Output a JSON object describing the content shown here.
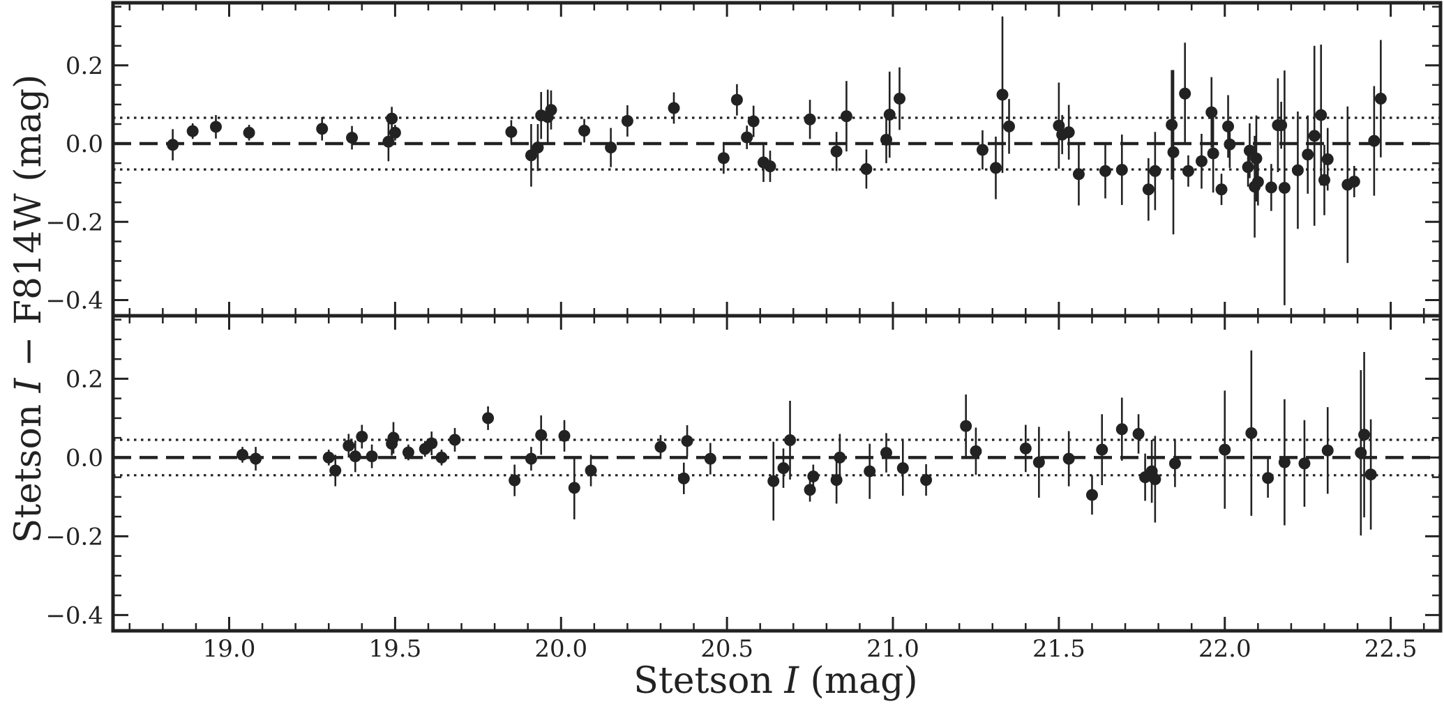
{
  "chart_data": {
    "type": "scatter",
    "xlabel": "Stetson I (mag)",
    "ylabel": "Stetson I − F814W (mag)",
    "xlim": [
      18.65,
      22.65
    ],
    "xticks": [
      19.0,
      19.5,
      20.0,
      20.5,
      21.0,
      21.5,
      22.0,
      22.5
    ],
    "xtick_labels": [
      "19.0",
      "19.5",
      "20.0",
      "20.5",
      "21.0",
      "21.5",
      "22.0",
      "22.5"
    ],
    "shared_x": true,
    "panels": [
      {
        "name": "top",
        "ylim": [
          -0.44,
          0.36
        ],
        "yticks": [
          0.2,
          0.0,
          -0.2,
          -0.4
        ],
        "ytick_labels": [
          "0.2",
          "0.0",
          "−0.2",
          "−0.4"
        ],
        "reference_lines": [
          {
            "style": "dashed",
            "y": 0.0
          },
          {
            "style": "dotted",
            "y": 0.066
          },
          {
            "style": "dotted",
            "y": -0.066
          }
        ],
        "points": [
          {
            "x": 18.83,
            "y": -0.003,
            "err": 0.04
          },
          {
            "x": 18.89,
            "y": 0.032,
            "err": 0.02
          },
          {
            "x": 18.96,
            "y": 0.043,
            "err": 0.03
          },
          {
            "x": 19.06,
            "y": 0.028,
            "err": 0.02
          },
          {
            "x": 19.28,
            "y": 0.038,
            "err": 0.03
          },
          {
            "x": 19.37,
            "y": 0.015,
            "err": 0.03
          },
          {
            "x": 19.48,
            "y": 0.005,
            "err": 0.05
          },
          {
            "x": 19.49,
            "y": 0.064,
            "err": 0.03
          },
          {
            "x": 19.5,
            "y": 0.028,
            "err": 0.02
          },
          {
            "x": 19.85,
            "y": 0.03,
            "err": 0.03
          },
          {
            "x": 19.91,
            "y": -0.03,
            "err": 0.08
          },
          {
            "x": 19.93,
            "y": -0.01,
            "err": 0.06
          },
          {
            "x": 19.94,
            "y": 0.072,
            "err": 0.06
          },
          {
            "x": 19.96,
            "y": 0.068,
            "err": 0.07
          },
          {
            "x": 19.97,
            "y": 0.086,
            "err": 0.05
          },
          {
            "x": 20.07,
            "y": 0.033,
            "err": 0.03
          },
          {
            "x": 20.15,
            "y": -0.01,
            "err": 0.05
          },
          {
            "x": 20.2,
            "y": 0.058,
            "err": 0.04
          },
          {
            "x": 20.34,
            "y": 0.091,
            "err": 0.04
          },
          {
            "x": 20.49,
            "y": -0.037,
            "err": 0.04
          },
          {
            "x": 20.53,
            "y": 0.112,
            "err": 0.04
          },
          {
            "x": 20.56,
            "y": 0.016,
            "err": 0.03
          },
          {
            "x": 20.58,
            "y": 0.057,
            "err": 0.04
          },
          {
            "x": 20.61,
            "y": -0.048,
            "err": 0.05
          },
          {
            "x": 20.63,
            "y": -0.058,
            "err": 0.04
          },
          {
            "x": 20.75,
            "y": 0.062,
            "err": 0.05
          },
          {
            "x": 20.83,
            "y": -0.02,
            "err": 0.05
          },
          {
            "x": 20.86,
            "y": 0.07,
            "err": 0.09
          },
          {
            "x": 20.92,
            "y": -0.065,
            "err": 0.05
          },
          {
            "x": 20.98,
            "y": 0.01,
            "err": 0.06
          },
          {
            "x": 20.99,
            "y": 0.074,
            "err": 0.11
          },
          {
            "x": 21.02,
            "y": 0.115,
            "err": 0.08
          },
          {
            "x": 21.27,
            "y": -0.016,
            "err": 0.05
          },
          {
            "x": 21.31,
            "y": -0.062,
            "err": 0.08
          },
          {
            "x": 21.33,
            "y": 0.125,
            "err": 0.2
          },
          {
            "x": 21.35,
            "y": 0.044,
            "err": 0.07
          },
          {
            "x": 21.5,
            "y": 0.046,
            "err": 0.11
          },
          {
            "x": 21.51,
            "y": 0.023,
            "err": 0.05
          },
          {
            "x": 21.53,
            "y": 0.029,
            "err": 0.07
          },
          {
            "x": 21.56,
            "y": -0.078,
            "err": 0.08
          },
          {
            "x": 21.64,
            "y": -0.07,
            "err": 0.07
          },
          {
            "x": 21.69,
            "y": -0.067,
            "err": 0.09
          },
          {
            "x": 21.77,
            "y": -0.117,
            "err": 0.08
          },
          {
            "x": 21.79,
            "y": -0.07,
            "err": 0.1
          },
          {
            "x": 21.84,
            "y": 0.048,
            "err": 0.14
          },
          {
            "x": 21.845,
            "y": -0.022,
            "err": 0.21
          },
          {
            "x": 21.88,
            "y": 0.128,
            "err": 0.13
          },
          {
            "x": 21.89,
            "y": -0.07,
            "err": 0.04
          },
          {
            "x": 21.93,
            "y": -0.045,
            "err": 0.07
          },
          {
            "x": 21.96,
            "y": 0.08,
            "err": 0.09
          },
          {
            "x": 21.965,
            "y": -0.025,
            "err": 0.1
          },
          {
            "x": 21.99,
            "y": -0.117,
            "err": 0.04
          },
          {
            "x": 22.01,
            "y": 0.044,
            "err": 0.08
          },
          {
            "x": 22.015,
            "y": -0.002,
            "err": 0.06
          },
          {
            "x": 22.07,
            "y": -0.06,
            "err": 0.05
          },
          {
            "x": 22.075,
            "y": -0.018,
            "err": 0.07
          },
          {
            "x": 22.09,
            "y": -0.11,
            "err": 0.13
          },
          {
            "x": 22.095,
            "y": -0.038,
            "err": 0.11
          },
          {
            "x": 22.1,
            "y": -0.098,
            "err": 0.06
          },
          {
            "x": 22.14,
            "y": -0.112,
            "err": 0.06
          },
          {
            "x": 22.16,
            "y": 0.047,
            "err": 0.12
          },
          {
            "x": 22.17,
            "y": 0.047,
            "err": 0.06
          },
          {
            "x": 22.18,
            "y": -0.113,
            "err": 0.3
          },
          {
            "x": 22.22,
            "y": -0.068,
            "err": 0.15
          },
          {
            "x": 22.25,
            "y": -0.028,
            "err": 0.1
          },
          {
            "x": 22.27,
            "y": 0.02,
            "err": 0.23
          },
          {
            "x": 22.29,
            "y": 0.073,
            "err": 0.18
          },
          {
            "x": 22.3,
            "y": -0.093,
            "err": 0.09
          },
          {
            "x": 22.31,
            "y": -0.04,
            "err": 0.08
          },
          {
            "x": 22.37,
            "y": -0.105,
            "err": 0.2
          },
          {
            "x": 22.39,
            "y": -0.097,
            "err": 0.04
          },
          {
            "x": 22.45,
            "y": 0.007,
            "err": 0.14
          },
          {
            "x": 22.47,
            "y": 0.115,
            "err": 0.15
          }
        ]
      },
      {
        "name": "bottom",
        "ylim": [
          -0.44,
          0.36
        ],
        "yticks": [
          0.2,
          0.0,
          -0.2,
          -0.4
        ],
        "ytick_labels": [
          "0.2",
          "0.0",
          "−0.2",
          "−0.4"
        ],
        "reference_lines": [
          {
            "style": "dashed",
            "y": 0.0
          },
          {
            "style": "dotted",
            "y": 0.045
          },
          {
            "style": "dotted",
            "y": -0.045
          }
        ],
        "points": [
          {
            "x": 19.04,
            "y": 0.007,
            "err": 0.02
          },
          {
            "x": 19.08,
            "y": -0.003,
            "err": 0.03
          },
          {
            "x": 19.3,
            "y": 0.0,
            "err": 0.02
          },
          {
            "x": 19.32,
            "y": -0.033,
            "err": 0.04
          },
          {
            "x": 19.36,
            "y": 0.03,
            "err": 0.03
          },
          {
            "x": 19.38,
            "y": 0.003,
            "err": 0.04
          },
          {
            "x": 19.4,
            "y": 0.053,
            "err": 0.03
          },
          {
            "x": 19.43,
            "y": 0.003,
            "err": 0.03
          },
          {
            "x": 19.49,
            "y": 0.035,
            "err": 0.03
          },
          {
            "x": 19.495,
            "y": 0.05,
            "err": 0.04
          },
          {
            "x": 19.54,
            "y": 0.013,
            "err": 0.02
          },
          {
            "x": 19.59,
            "y": 0.022,
            "err": 0.02
          },
          {
            "x": 19.61,
            "y": 0.036,
            "err": 0.03
          },
          {
            "x": 19.64,
            "y": 0.0,
            "err": 0.02
          },
          {
            "x": 19.68,
            "y": 0.045,
            "err": 0.03
          },
          {
            "x": 19.78,
            "y": 0.1,
            "err": 0.03
          },
          {
            "x": 19.86,
            "y": -0.058,
            "err": 0.04
          },
          {
            "x": 19.91,
            "y": -0.003,
            "err": 0.03
          },
          {
            "x": 19.94,
            "y": 0.057,
            "err": 0.05
          },
          {
            "x": 20.01,
            "y": 0.055,
            "err": 0.04
          },
          {
            "x": 20.04,
            "y": -0.077,
            "err": 0.08
          },
          {
            "x": 20.09,
            "y": -0.033,
            "err": 0.04
          },
          {
            "x": 20.3,
            "y": 0.027,
            "err": 0.03
          },
          {
            "x": 20.37,
            "y": -0.053,
            "err": 0.04
          },
          {
            "x": 20.38,
            "y": 0.042,
            "err": 0.04
          },
          {
            "x": 20.45,
            "y": -0.003,
            "err": 0.04
          },
          {
            "x": 20.64,
            "y": -0.06,
            "err": 0.1
          },
          {
            "x": 20.67,
            "y": -0.027,
            "err": 0.05
          },
          {
            "x": 20.69,
            "y": 0.044,
            "err": 0.1
          },
          {
            "x": 20.75,
            "y": -0.082,
            "err": 0.03
          },
          {
            "x": 20.76,
            "y": -0.048,
            "err": 0.03
          },
          {
            "x": 20.83,
            "y": -0.057,
            "err": 0.06
          },
          {
            "x": 20.84,
            "y": 0.0,
            "err": 0.06
          },
          {
            "x": 20.93,
            "y": -0.035,
            "err": 0.07
          },
          {
            "x": 20.98,
            "y": 0.012,
            "err": 0.05
          },
          {
            "x": 21.03,
            "y": -0.027,
            "err": 0.07
          },
          {
            "x": 21.1,
            "y": -0.057,
            "err": 0.04
          },
          {
            "x": 21.22,
            "y": 0.08,
            "err": 0.08
          },
          {
            "x": 21.25,
            "y": 0.016,
            "err": 0.06
          },
          {
            "x": 21.4,
            "y": 0.023,
            "err": 0.06
          },
          {
            "x": 21.44,
            "y": -0.012,
            "err": 0.09
          },
          {
            "x": 21.53,
            "y": -0.003,
            "err": 0.07
          },
          {
            "x": 21.6,
            "y": -0.095,
            "err": 0.05
          },
          {
            "x": 21.63,
            "y": 0.02,
            "err": 0.09
          },
          {
            "x": 21.69,
            "y": 0.072,
            "err": 0.08
          },
          {
            "x": 21.74,
            "y": 0.06,
            "err": 0.05
          },
          {
            "x": 21.76,
            "y": -0.05,
            "err": 0.06
          },
          {
            "x": 21.78,
            "y": -0.035,
            "err": 0.08
          },
          {
            "x": 21.79,
            "y": -0.055,
            "err": 0.11
          },
          {
            "x": 21.85,
            "y": -0.015,
            "err": 0.06
          },
          {
            "x": 22.0,
            "y": 0.02,
            "err": 0.15
          },
          {
            "x": 22.08,
            "y": 0.062,
            "err": 0.21
          },
          {
            "x": 22.13,
            "y": -0.052,
            "err": 0.05
          },
          {
            "x": 22.18,
            "y": -0.012,
            "err": 0.16
          },
          {
            "x": 22.24,
            "y": -0.015,
            "err": 0.11
          },
          {
            "x": 22.31,
            "y": 0.018,
            "err": 0.11
          },
          {
            "x": 22.41,
            "y": 0.012,
            "err": 0.21
          },
          {
            "x": 22.42,
            "y": 0.058,
            "err": 0.21
          },
          {
            "x": 22.44,
            "y": -0.043,
            "err": 0.14
          }
        ]
      }
    ]
  }
}
